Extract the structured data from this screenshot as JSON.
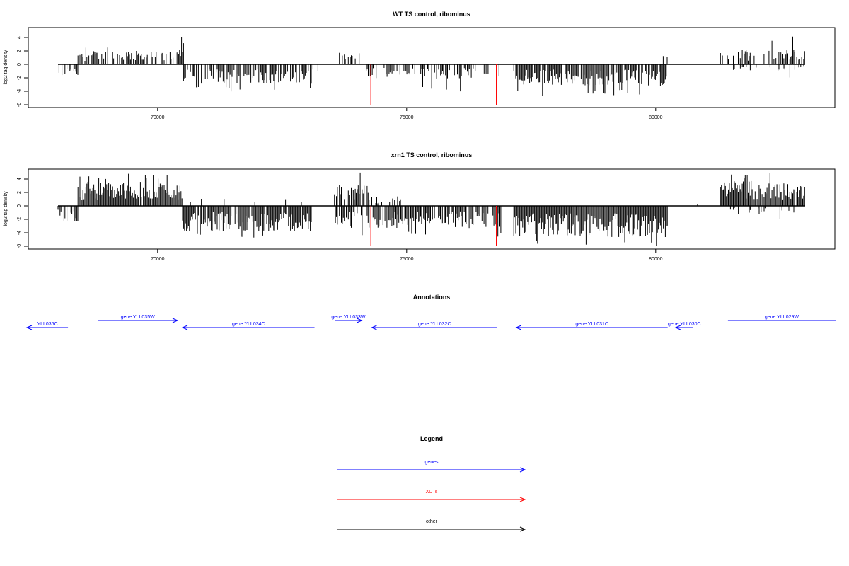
{
  "chart_data": [
    {
      "type": "bar",
      "title": "WT TS control, ribominus",
      "xlabel": "",
      "ylabel": "log2 tag density",
      "xlim": [
        68000,
        83000
      ],
      "ylim": [
        -6,
        5
      ],
      "xticks": [
        70000,
        75000,
        80000
      ],
      "yticks": [
        -6,
        -4,
        -2,
        0,
        2,
        4
      ],
      "grid": false,
      "series": [
        {
          "color": "#000000",
          "segments": [
            {
              "from": 68000,
              "to": 68400,
              "sign": -1,
              "mean": 1.2,
              "max": 2.3,
              "density": 0.55
            },
            {
              "from": 68400,
              "to": 70420,
              "sign": 1,
              "mean": 1.4,
              "max": 2.9,
              "density": 0.6
            },
            {
              "from": 70420,
              "to": 70520,
              "sign": 1,
              "mean": 3.0,
              "max": 4.7,
              "density": 0.9
            },
            {
              "from": 70520,
              "to": 73100,
              "sign": -1,
              "mean": 2.0,
              "max": 4.1,
              "density": 0.7
            },
            {
              "from": 73100,
              "to": 73550,
              "sign": -1,
              "mean": 0.7,
              "max": 1.2,
              "density": 0.2
            },
            {
              "from": 73550,
              "to": 74050,
              "sign": 1,
              "mean": 1.2,
              "max": 2.8,
              "density": 0.35
            },
            {
              "from": 74050,
              "to": 76900,
              "sign": -1,
              "mean": 1.5,
              "max": 4.2,
              "density": 0.45
            },
            {
              "from": 77150,
              "to": 80250,
              "sign": -1,
              "mean": 2.2,
              "max": 4.7,
              "density": 0.85
            },
            {
              "from": 80150,
              "to": 80250,
              "sign": 1,
              "mean": 1.0,
              "max": 1.5,
              "density": 0.3
            },
            {
              "from": 81300,
              "to": 83000,
              "sign": 1,
              "mean": 1.5,
              "max": 4.2,
              "density": 0.55
            },
            {
              "from": 81500,
              "to": 83000,
              "sign": -1,
              "mean": 0.7,
              "max": 2.0,
              "density": 0.15
            }
          ]
        },
        {
          "color": "#ff0000",
          "spikes": [
            {
              "x": 74280,
              "y": -6
            },
            {
              "x": 76800,
              "y": -6
            }
          ]
        }
      ]
    },
    {
      "type": "bar",
      "title": "xrn1 TS control, ribominus",
      "xlabel": "",
      "ylabel": "log2 tag density",
      "xlim": [
        68000,
        83000
      ],
      "ylim": [
        -6,
        5
      ],
      "xticks": [
        70000,
        75000,
        80000
      ],
      "yticks": [
        -6,
        -4,
        -2,
        0,
        2,
        4
      ],
      "grid": false,
      "series": [
        {
          "color": "#000000",
          "segments": [
            {
              "from": 68000,
              "to": 68400,
              "sign": -1,
              "mean": 1.6,
              "max": 3.0,
              "density": 0.7
            },
            {
              "from": 68400,
              "to": 70500,
              "sign": 1,
              "mean": 2.5,
              "max": 4.9,
              "density": 0.95
            },
            {
              "from": 70500,
              "to": 73100,
              "sign": -1,
              "mean": 2.6,
              "max": 4.8,
              "density": 0.9
            },
            {
              "from": 70500,
              "to": 73100,
              "sign": 1,
              "mean": 0.8,
              "max": 2.2,
              "density": 0.08
            },
            {
              "from": 73550,
              "to": 74300,
              "sign": 1,
              "mean": 2.3,
              "max": 5.0,
              "density": 0.75
            },
            {
              "from": 73550,
              "to": 76900,
              "sign": -1,
              "mean": 2.3,
              "max": 4.7,
              "density": 0.7
            },
            {
              "from": 74300,
              "to": 75200,
              "sign": 1,
              "mean": 1.0,
              "max": 2.2,
              "density": 0.2
            },
            {
              "from": 77150,
              "to": 80250,
              "sign": -1,
              "mean": 3.2,
              "max": 6.0,
              "density": 1.0
            },
            {
              "from": 80700,
              "to": 80950,
              "sign": 1,
              "mean": 0.4,
              "max": 0.6,
              "density": 0.1
            },
            {
              "from": 81300,
              "to": 83000,
              "sign": 1,
              "mean": 2.6,
              "max": 5.0,
              "density": 0.95
            },
            {
              "from": 81500,
              "to": 83000,
              "sign": -1,
              "mean": 0.9,
              "max": 2.4,
              "density": 0.2
            }
          ]
        },
        {
          "color": "#ff0000",
          "spikes": [
            {
              "x": 74280,
              "y": -6
            },
            {
              "x": 76800,
              "y": -6
            }
          ]
        }
      ]
    },
    {
      "type": "annotation-track",
      "title": "Annotations",
      "xlim": [
        68000,
        83000
      ],
      "features": [
        {
          "label": "YLL036C",
          "start": 67200,
          "end": 68200,
          "strand": "-",
          "row": 0,
          "color": "#0000ff"
        },
        {
          "label": "gene YLL035W",
          "start": 68800,
          "end": 70400,
          "strand": "+",
          "row": 1,
          "color": "#0000ff"
        },
        {
          "label": "gene YLL034C",
          "start": 70500,
          "end": 73150,
          "strand": "-",
          "row": 0,
          "color": "#0000ff"
        },
        {
          "label": "gene YLL033W",
          "start": 73560,
          "end": 74100,
          "strand": "+",
          "row": 1,
          "color": "#0000ff"
        },
        {
          "label": "gene YLL032C",
          "start": 74300,
          "end": 76820,
          "strand": "-",
          "row": 0,
          "color": "#0000ff"
        },
        {
          "label": "gene YLL031C",
          "start": 77200,
          "end": 80240,
          "strand": "-",
          "row": 0,
          "color": "#0000ff"
        },
        {
          "label": "gene YLL030C",
          "start": 80400,
          "end": 80750,
          "strand": "-",
          "row": 0,
          "color": "#0000ff"
        },
        {
          "label": "gene YLL029W",
          "start": 81450,
          "end": 83650,
          "strand": "+",
          "row": 1,
          "color": "#0000ff"
        }
      ]
    },
    {
      "type": "legend",
      "title": "Legend",
      "entries": [
        {
          "label": "genes",
          "color": "#0000ff"
        },
        {
          "label": "XUTs",
          "color": "#ff0000"
        },
        {
          "label": "other",
          "color": "#000000"
        }
      ]
    }
  ]
}
